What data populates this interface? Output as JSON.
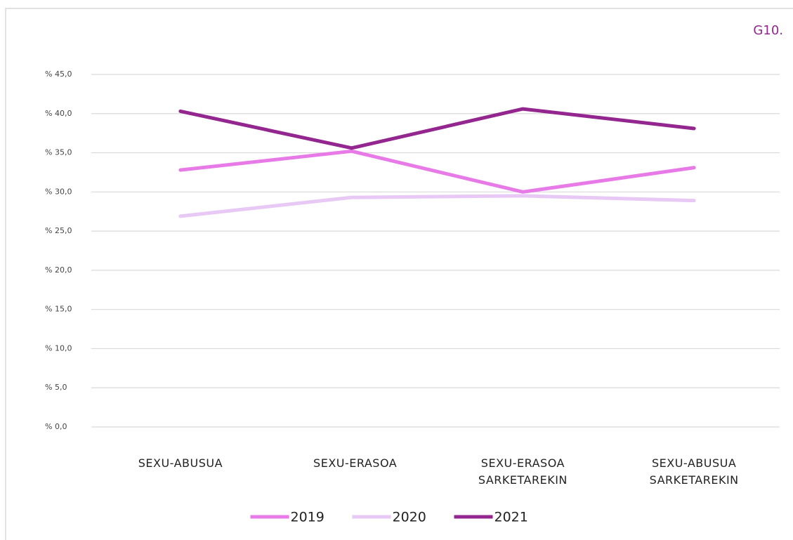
{
  "chart_data": {
    "type": "line",
    "title": "G10.",
    "categories": [
      "SEXU-ABUSUA",
      "SEXU-ERASOA",
      "SEXU-ERASOA SARKETAREKIN",
      "SEXU-ABUSUA SARKETAREKIN"
    ],
    "series": [
      {
        "name": "2019",
        "color": "#e87ae8",
        "values": [
          32.8,
          35.2,
          30.0,
          33.1
        ]
      },
      {
        "name": "2020",
        "color": "#e8c8f5",
        "values": [
          26.9,
          29.3,
          29.5,
          28.9
        ]
      },
      {
        "name": "2021",
        "color": "#93268f",
        "values": [
          40.3,
          35.6,
          40.6,
          38.1
        ]
      }
    ],
    "ylim": [
      0,
      45
    ],
    "yticks": [
      {
        "value": 0,
        "label": "% 0,0"
      },
      {
        "value": 5,
        "label": "% 5,0"
      },
      {
        "value": 10,
        "label": "% 10,0"
      },
      {
        "value": 15,
        "label": "% 15,0"
      },
      {
        "value": 20,
        "label": "% 20,0"
      },
      {
        "value": 25,
        "label": "% 25,0"
      },
      {
        "value": 30,
        "label": "% 30,0"
      },
      {
        "value": 35,
        "label": "% 35,0"
      },
      {
        "value": 40,
        "label": "% 40,0"
      },
      {
        "value": 45,
        "label": "% 45,0"
      }
    ],
    "grid": true,
    "legend": "bottom"
  }
}
